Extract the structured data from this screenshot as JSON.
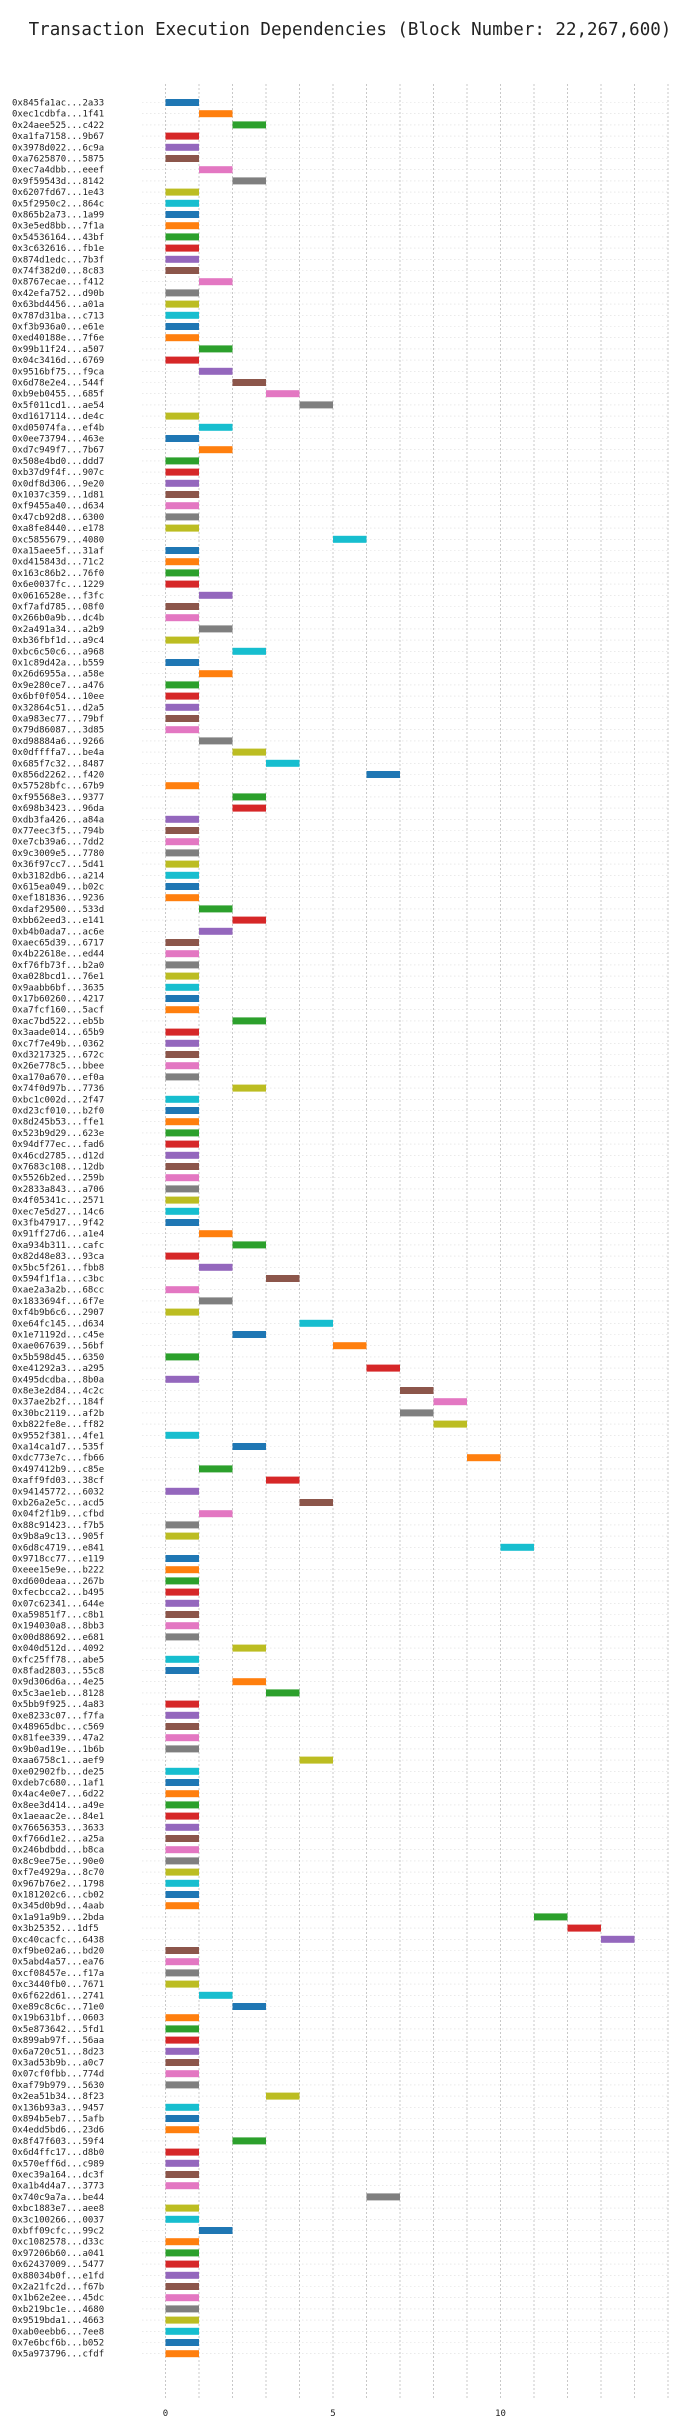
{
  "chart_data": {
    "type": "gantt",
    "title": "Transaction Execution Dependencies (Block Number: 22,267,600)",
    "xlabel": "",
    "ylabel": "",
    "xlim": [
      -1,
      15
    ],
    "xticks": [
      0,
      5,
      10
    ],
    "grid": "vertical-dotted",
    "palette": [
      "#1f77b4",
      "#ff7f0e",
      "#2ca02c",
      "#d62728",
      "#9467bd",
      "#8c564b",
      "#e377c2",
      "#7f7f7f",
      "#bcbd22",
      "#17becf"
    ],
    "transactions": [
      {
        "label": "0x845fa1ac...2a33",
        "start": 0
      },
      {
        "label": "0xec1cdbfa...1f41",
        "start": 1
      },
      {
        "label": "0x24aee525...c422",
        "start": 2
      },
      {
        "label": "0xa1fa7158...9b67",
        "start": 0
      },
      {
        "label": "0x3978d022...6c9a",
        "start": 0
      },
      {
        "label": "0xa7625870...5875",
        "start": 0
      },
      {
        "label": "0xec7a4dbb...eeef",
        "start": 1
      },
      {
        "label": "0x9f59543d...8142",
        "start": 2
      },
      {
        "label": "0x6207fd67...1e43",
        "start": 0
      },
      {
        "label": "0x5f2950c2...864c",
        "start": 0
      },
      {
        "label": "0x865b2a73...1a99",
        "start": 0
      },
      {
        "label": "0x3e5ed8bb...7f1a",
        "start": 0
      },
      {
        "label": "0x54536164...43bf",
        "start": 0
      },
      {
        "label": "0x3c632616...fb1e",
        "start": 0
      },
      {
        "label": "0x874d1edc...7b3f",
        "start": 0
      },
      {
        "label": "0x74f382d0...8c83",
        "start": 0
      },
      {
        "label": "0x8767ecae...f412",
        "start": 1
      },
      {
        "label": "0x42efa752...d90b",
        "start": 0
      },
      {
        "label": "0x63bd4456...a01a",
        "start": 0
      },
      {
        "label": "0x787d31ba...c713",
        "start": 0
      },
      {
        "label": "0xf3b936a0...e61e",
        "start": 0
      },
      {
        "label": "0xed40188e...7f6e",
        "start": 0
      },
      {
        "label": "0x99b11f24...a507",
        "start": 1
      },
      {
        "label": "0x04c3416d...6769",
        "start": 0
      },
      {
        "label": "0x9516bf75...f9ca",
        "start": 1
      },
      {
        "label": "0x6d78e2e4...544f",
        "start": 2
      },
      {
        "label": "0xb9eb0455...685f",
        "start": 3
      },
      {
        "label": "0x5f011cd1...ae54",
        "start": 4
      },
      {
        "label": "0xd1617114...de4c",
        "start": 0
      },
      {
        "label": "0xd05074fa...ef4b",
        "start": 1
      },
      {
        "label": "0x0ee73794...463e",
        "start": 0
      },
      {
        "label": "0xd7c949f7...7b67",
        "start": 1
      },
      {
        "label": "0x508e4bd0...ddd7",
        "start": 0
      },
      {
        "label": "0xb37d9f4f...907c",
        "start": 0
      },
      {
        "label": "0x0df8d306...9e20",
        "start": 0
      },
      {
        "label": "0x1037c359...1d81",
        "start": 0
      },
      {
        "label": "0xf9455a40...d634",
        "start": 0
      },
      {
        "label": "0x47cb92d8...6300",
        "start": 0
      },
      {
        "label": "0xa8fe8440...e178",
        "start": 0
      },
      {
        "label": "0xc5855679...4080",
        "start": 5
      },
      {
        "label": "0xa15aee5f...31af",
        "start": 0
      },
      {
        "label": "0xd415843d...71c2",
        "start": 0
      },
      {
        "label": "0x163c86b2...76f0",
        "start": 0
      },
      {
        "label": "0x6e0037fc...1229",
        "start": 0
      },
      {
        "label": "0x0616528e...f3fc",
        "start": 1
      },
      {
        "label": "0xf7afd785...08f0",
        "start": 0
      },
      {
        "label": "0x266b0a9b...dc4b",
        "start": 0
      },
      {
        "label": "0x2a491a34...a2b9",
        "start": 1
      },
      {
        "label": "0xb36fbf1d...a9c4",
        "start": 0
      },
      {
        "label": "0xbc6c50c6...a968",
        "start": 2
      },
      {
        "label": "0x1c89d42a...b559",
        "start": 0
      },
      {
        "label": "0x26d6955a...a58e",
        "start": 1
      },
      {
        "label": "0x9e280ce7...a476",
        "start": 0
      },
      {
        "label": "0x6bf0f054...10ee",
        "start": 0
      },
      {
        "label": "0x32864c51...d2a5",
        "start": 0
      },
      {
        "label": "0xa983ec77...79bf",
        "start": 0
      },
      {
        "label": "0x79d86087...3d85",
        "start": 0
      },
      {
        "label": "0xd98884a6...9266",
        "start": 1
      },
      {
        "label": "0x0dffffa7...be4a",
        "start": 2
      },
      {
        "label": "0x685f7c32...8487",
        "start": 3
      },
      {
        "label": "0x856d2262...f420",
        "start": 6
      },
      {
        "label": "0x57528bfc...67b9",
        "start": 0
      },
      {
        "label": "0xf95568e3...9377",
        "start": 2
      },
      {
        "label": "0x698b3423...96da",
        "start": 2
      },
      {
        "label": "0xdb3fa426...a84a",
        "start": 0
      },
      {
        "label": "0x77eec3f5...794b",
        "start": 0
      },
      {
        "label": "0xe7cb39a6...7dd2",
        "start": 0
      },
      {
        "label": "0x9c3009e5...7780",
        "start": 0
      },
      {
        "label": "0x36f97cc7...5d41",
        "start": 0
      },
      {
        "label": "0xb3182db6...a214",
        "start": 0
      },
      {
        "label": "0x615ea049...b02c",
        "start": 0
      },
      {
        "label": "0xef181836...9236",
        "start": 0
      },
      {
        "label": "0xdaf29500...533d",
        "start": 1
      },
      {
        "label": "0xbb62eed3...e141",
        "start": 2
      },
      {
        "label": "0xb4b0ada7...ac6e",
        "start": 1
      },
      {
        "label": "0xaec65d39...6717",
        "start": 0
      },
      {
        "label": "0x4b22618e...ed44",
        "start": 0
      },
      {
        "label": "0xf76fb73f...b2a0",
        "start": 0
      },
      {
        "label": "0xa028bcd1...76e1",
        "start": 0
      },
      {
        "label": "0x9aabb6bf...3635",
        "start": 0
      },
      {
        "label": "0x17b60260...4217",
        "start": 0
      },
      {
        "label": "0xa7fcf160...5acf",
        "start": 0
      },
      {
        "label": "0xac7bd522...eb5b",
        "start": 2
      },
      {
        "label": "0x3aade014...65b9",
        "start": 0
      },
      {
        "label": "0xc7f7e49b...0362",
        "start": 0
      },
      {
        "label": "0xd3217325...672c",
        "start": 0
      },
      {
        "label": "0x26e778c5...bbee",
        "start": 0
      },
      {
        "label": "0xa170a670...ef0a",
        "start": 0
      },
      {
        "label": "0x74f0d97b...7736",
        "start": 2
      },
      {
        "label": "0xbc1c002d...2f47",
        "start": 0
      },
      {
        "label": "0xd23cf010...b2f0",
        "start": 0
      },
      {
        "label": "0x8d245b53...ffe1",
        "start": 0
      },
      {
        "label": "0x523b9d29...623e",
        "start": 0
      },
      {
        "label": "0x94df77ec...fad6",
        "start": 0
      },
      {
        "label": "0x46cd2785...d12d",
        "start": 0
      },
      {
        "label": "0x7683c108...12db",
        "start": 0
      },
      {
        "label": "0x5526b2ed...259b",
        "start": 0
      },
      {
        "label": "0x2833a843...a706",
        "start": 0
      },
      {
        "label": "0x4f05341c...2571",
        "start": 0
      },
      {
        "label": "0xec7e5d27...14c6",
        "start": 0
      },
      {
        "label": "0x3fb47917...9f42",
        "start": 0
      },
      {
        "label": "0x91ff27d6...a1e4",
        "start": 1
      },
      {
        "label": "0xa934b311...cafc",
        "start": 2
      },
      {
        "label": "0x82d48e83...93ca",
        "start": 0
      },
      {
        "label": "0x5bc5f261...fbb8",
        "start": 1
      },
      {
        "label": "0x594f1f1a...c3bc",
        "start": 3
      },
      {
        "label": "0xae2a3a2b...68cc",
        "start": 0
      },
      {
        "label": "0x1833694f...6f7e",
        "start": 1
      },
      {
        "label": "0xf4b9b6c6...2907",
        "start": 0
      },
      {
        "label": "0xe64fc145...d634",
        "start": 4
      },
      {
        "label": "0x1e71192d...c45e",
        "start": 2
      },
      {
        "label": "0xae067639...56bf",
        "start": 5
      },
      {
        "label": "0x5b598d45...6350",
        "start": 0
      },
      {
        "label": "0xe41292a3...a295",
        "start": 6
      },
      {
        "label": "0x495dcdba...8b0a",
        "start": 0
      },
      {
        "label": "0x8e3e2d84...4c2c",
        "start": 7
      },
      {
        "label": "0x37ae2b2f...184f",
        "start": 8
      },
      {
        "label": "0x30bc2119...af2b",
        "start": 7
      },
      {
        "label": "0xb822fe8e...ff82",
        "start": 8
      },
      {
        "label": "0x9552f381...4fe1",
        "start": 0
      },
      {
        "label": "0xa14ca1d7...535f",
        "start": 2
      },
      {
        "label": "0xdc773e7c...fb66",
        "start": 9
      },
      {
        "label": "0x497412b9...c85e",
        "start": 1
      },
      {
        "label": "0xaff9fd03...38cf",
        "start": 3
      },
      {
        "label": "0x94145772...6032",
        "start": 0
      },
      {
        "label": "0xb26a2e5c...acd5",
        "start": 4
      },
      {
        "label": "0x04f2f1b9...cfbd",
        "start": 1
      },
      {
        "label": "0x88c91423...f7b5",
        "start": 0
      },
      {
        "label": "0x9b8a9c13...905f",
        "start": 0
      },
      {
        "label": "0x6d8c4719...e841",
        "start": 10
      },
      {
        "label": "0x9718cc77...e119",
        "start": 0
      },
      {
        "label": "0xeee15e9e...b222",
        "start": 0
      },
      {
        "label": "0xd600deaa...267b",
        "start": 0
      },
      {
        "label": "0xfecbcca2...b495",
        "start": 0
      },
      {
        "label": "0x07c62341...644e",
        "start": 0
      },
      {
        "label": "0xa59851f7...c8b1",
        "start": 0
      },
      {
        "label": "0x194030a8...8bb3",
        "start": 0
      },
      {
        "label": "0x00d88692...e681",
        "start": 0
      },
      {
        "label": "0x040d512d...4092",
        "start": 2
      },
      {
        "label": "0xfc25ff78...abe5",
        "start": 0
      },
      {
        "label": "0x8fad2803...55c8",
        "start": 0
      },
      {
        "label": "0x9d306d6a...4e25",
        "start": 2
      },
      {
        "label": "0x5c3ae1eb...8128",
        "start": 3
      },
      {
        "label": "0x5bb9f925...4a83",
        "start": 0
      },
      {
        "label": "0xe8233c07...f7fa",
        "start": 0
      },
      {
        "label": "0x48965dbc...c569",
        "start": 0
      },
      {
        "label": "0x81fee339...47a2",
        "start": 0
      },
      {
        "label": "0x9b0ad19e...1b6b",
        "start": 0
      },
      {
        "label": "0xaa6758c1...aef9",
        "start": 4
      },
      {
        "label": "0xe02902fb...de25",
        "start": 0
      },
      {
        "label": "0xdeb7c680...1af1",
        "start": 0
      },
      {
        "label": "0x4ac4e0e7...6d22",
        "start": 0
      },
      {
        "label": "0x8ee3d414...a49e",
        "start": 0
      },
      {
        "label": "0x1aeaac2e...84e1",
        "start": 0
      },
      {
        "label": "0x76656353...3633",
        "start": 0
      },
      {
        "label": "0xf766d1e2...a25a",
        "start": 0
      },
      {
        "label": "0x246bdbdd...b8ca",
        "start": 0
      },
      {
        "label": "0x8c9ee75e...90e0",
        "start": 0
      },
      {
        "label": "0xf7e4929a...8c70",
        "start": 0
      },
      {
        "label": "0x967b76e2...1798",
        "start": 0
      },
      {
        "label": "0x181202c6...cb02",
        "start": 0
      },
      {
        "label": "0x345d0b9d...4aab",
        "start": 0
      },
      {
        "label": "0x1a91a9b9...2bda",
        "start": 11
      },
      {
        "label": "0x3b25352...1df5",
        "start": 12
      },
      {
        "label": "0xc40cacfc...6438",
        "start": 13
      },
      {
        "label": "0xf9be02a6...bd20",
        "start": 0
      },
      {
        "label": "0x5abd4a57...ea76",
        "start": 0
      },
      {
        "label": "0xcf08457e...f17a",
        "start": 0
      },
      {
        "label": "0xc3440fb0...7671",
        "start": 0
      },
      {
        "label": "0x6f622d61...2741",
        "start": 1
      },
      {
        "label": "0xe89c8c6c...71e0",
        "start": 2
      },
      {
        "label": "0x19b631bf...0603",
        "start": 0
      },
      {
        "label": "0x5e873642...5fd1",
        "start": 0
      },
      {
        "label": "0x899ab97f...56aa",
        "start": 0
      },
      {
        "label": "0x6a720c51...8d23",
        "start": 0
      },
      {
        "label": "0x3ad53b9b...a0c7",
        "start": 0
      },
      {
        "label": "0x07cf0fbb...774d",
        "start": 0
      },
      {
        "label": "0xaf79b979...5630",
        "start": 0
      },
      {
        "label": "0x2ea51b34...8f23",
        "start": 3
      },
      {
        "label": "0x136b93a3...9457",
        "start": 0
      },
      {
        "label": "0x894b5eb7...5afb",
        "start": 0
      },
      {
        "label": "0x4edd5bd6...23d6",
        "start": 0
      },
      {
        "label": "0x8f47f603...59f4",
        "start": 2
      },
      {
        "label": "0x6d4ffc17...d8b0",
        "start": 0
      },
      {
        "label": "0x570eff6d...c989",
        "start": 0
      },
      {
        "label": "0xec39a164...dc3f",
        "start": 0
      },
      {
        "label": "0xa1b4d4a7...3773",
        "start": 0
      },
      {
        "label": "0x740c9a7a...be44",
        "start": 6
      },
      {
        "label": "0xbc1883e7...aee8",
        "start": 0
      },
      {
        "label": "0x3c100266...0037",
        "start": 0
      },
      {
        "label": "0xbff09cfc...99c2",
        "start": 1
      },
      {
        "label": "0xc1082578...d33c",
        "start": 0
      },
      {
        "label": "0x97206b60...a041",
        "start": 0
      },
      {
        "label": "0x62437009...5477",
        "start": 0
      },
      {
        "label": "0x88034b0f...e1fd",
        "start": 0
      },
      {
        "label": "0x2a21fc2d...f67b",
        "start": 0
      },
      {
        "label": "0x1b62e2ee...45dc",
        "start": 0
      },
      {
        "label": "0xb219bc1e...4680",
        "start": 0
      },
      {
        "label": "0x9519bda1...4663",
        "start": 0
      },
      {
        "label": "0xab0eebb6...7ee8",
        "start": 0
      },
      {
        "label": "0x7e6bcf6b...b052",
        "start": 0
      },
      {
        "label": "0x5a973796...cfdf",
        "start": 0
      }
    ]
  }
}
